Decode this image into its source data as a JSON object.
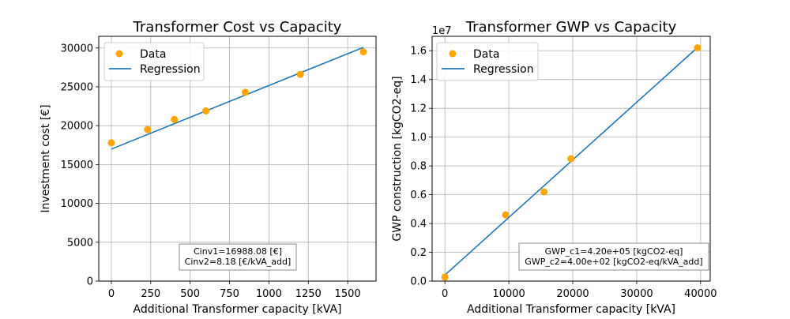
{
  "chart_data": [
    {
      "type": "scatter",
      "title": "Transformer Cost vs Capacity",
      "xlabel": "Additional Transformer capacity [kVA]",
      "ylabel": "Investment cost [€]",
      "xlim": [
        -80,
        1680
      ],
      "ylim": [
        0,
        31500
      ],
      "x_ticks": [
        0,
        250,
        500,
        750,
        1000,
        1250,
        1500
      ],
      "y_ticks": [
        0,
        5000,
        10000,
        15000,
        20000,
        25000,
        30000
      ],
      "y_offset_label": "",
      "grid": true,
      "legend": {
        "position": "top-left",
        "entries": [
          "Data",
          "Regression"
        ]
      },
      "series": [
        {
          "name": "Data",
          "kind": "scatter",
          "color": "#FFA500",
          "x": [
            0,
            230,
            400,
            600,
            850,
            1200,
            1600
          ],
          "y": [
            17800,
            19500,
            20800,
            21900,
            24300,
            26600,
            29500
          ]
        },
        {
          "name": "Regression",
          "kind": "line",
          "color": "#1f77b4",
          "x": [
            0,
            1600
          ],
          "y": [
            16988.08,
            30076
          ]
        }
      ],
      "annotation": [
        "Cinv1=16988.08 [€]",
        "Cinv2=8.18 [€/kVA_add]"
      ]
    },
    {
      "type": "scatter",
      "title": "Transformer GWP vs Capacity",
      "xlabel": "Additional Transformer capacity [kVA]",
      "ylabel": "GWP construction [kgCO2-eq]",
      "xlim": [
        -2000,
        41500
      ],
      "ylim": [
        0,
        17000000
      ],
      "x_ticks": [
        0,
        10000,
        20000,
        30000,
        40000
      ],
      "y_ticks": [
        0,
        2000000,
        4000000,
        6000000,
        8000000,
        10000000,
        12000000,
        14000000,
        16000000
      ],
      "y_tick_labels": [
        "0.0",
        "0.2",
        "0.4",
        "0.6",
        "0.8",
        "1.0",
        "1.2",
        "1.4",
        "1.6"
      ],
      "y_offset_label": "1e7",
      "grid": true,
      "legend": {
        "position": "top-left",
        "entries": [
          "Data",
          "Regression"
        ]
      },
      "series": [
        {
          "name": "Data",
          "kind": "scatter",
          "color": "#FFA500",
          "x": [
            0,
            9500,
            15500,
            19700,
            39500
          ],
          "y": [
            280000,
            4600000,
            6200000,
            8500000,
            16200000
          ]
        },
        {
          "name": "Regression",
          "kind": "line",
          "color": "#1f77b4",
          "x": [
            0,
            39500
          ],
          "y": [
            420000,
            16220000
          ]
        }
      ],
      "annotation": [
        "GWP_c1=4.20e+05 [kgCO2-eq]",
        "GWP_c2=4.00e+02 [kgCO2-eq/kVA_add]"
      ]
    }
  ]
}
